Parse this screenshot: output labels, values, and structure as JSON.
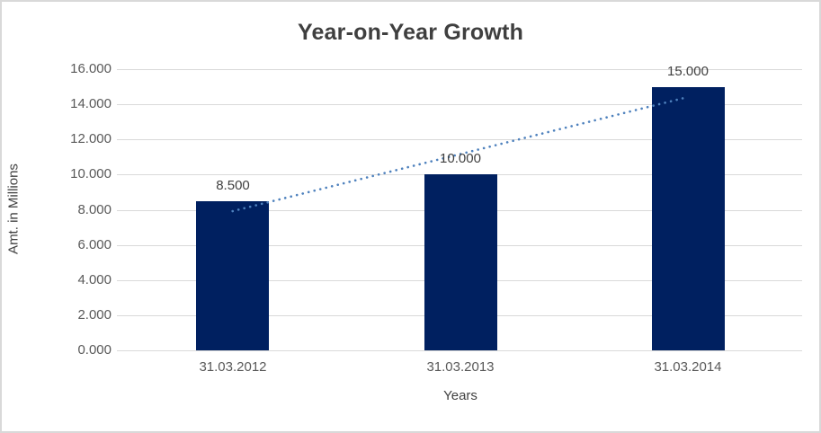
{
  "frame": {
    "background_color": "#FFFFFF",
    "border_color": "#D9D9D9"
  },
  "chart_data": {
    "type": "bar",
    "title": "Year-on-Year Growth",
    "xlabel": "Years",
    "ylabel": "Amt. in Millions",
    "categories": [
      "31.03.2012",
      "31.03.2013",
      "31.03.2014"
    ],
    "values": [
      8.5,
      10,
      15
    ],
    "data_labels": [
      "8.500",
      "10.000",
      "15.000"
    ],
    "ylim": [
      0,
      16
    ],
    "y_tick_labels": [
      "0.000",
      "2.000",
      "4.000",
      "6.000",
      "8.000",
      "10.000",
      "12.000",
      "14.000",
      "16.000"
    ],
    "grid": "horizontal",
    "legend_position": "none",
    "bar_color": "#002060",
    "gridline_color": "#D9D9D9",
    "title_color": "#3F3F3F",
    "tick_label_color": "#595959",
    "data_label_color": "#404040",
    "trendline": {
      "type": "linear",
      "style": "dotted",
      "color": "#4E81BD",
      "start_value": 7.92,
      "end_value": 14.42
    }
  }
}
